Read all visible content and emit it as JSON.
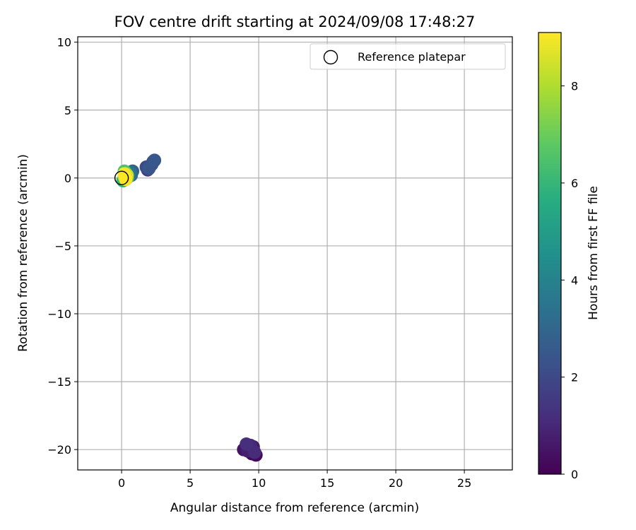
{
  "chart_data": {
    "type": "scatter",
    "title": "FOV centre drift starting at 2024/09/08 17:48:27",
    "xlabel": "Angular distance from reference (arcmin)",
    "ylabel": "Rotation from reference (arcmin)",
    "xlim": [
      -3.2,
      28.5
    ],
    "ylim": [
      -21.5,
      10.4
    ],
    "xticks": [
      0,
      5,
      10,
      15,
      20,
      25
    ],
    "yticks": [
      -20,
      -15,
      -10,
      -5,
      0,
      5,
      10
    ],
    "grid": true,
    "legend": {
      "placement": "top-right",
      "entries": [
        "Reference platepar"
      ]
    },
    "reference_point": {
      "x": 0,
      "y": 0
    },
    "colorbar": {
      "label": "Hours from first FF file",
      "colormap": "viridis",
      "range": [
        0,
        9.1
      ],
      "ticks": [
        0,
        2,
        4,
        6,
        8
      ]
    },
    "points": [
      {
        "x": 9.5,
        "y": -20.3,
        "h": 0.1
      },
      {
        "x": 9.8,
        "y": -20.4,
        "h": 0.2
      },
      {
        "x": 9.3,
        "y": -19.9,
        "h": 0.3
      },
      {
        "x": 8.9,
        "y": -20.0,
        "h": 0.5
      },
      {
        "x": 9.6,
        "y": -19.8,
        "h": 0.6
      },
      {
        "x": 9.2,
        "y": -20.1,
        "h": 0.8
      },
      {
        "x": 9.4,
        "y": -19.7,
        "h": 1.0
      },
      {
        "x": 9.7,
        "y": -20.2,
        "h": 1.1
      },
      {
        "x": 9.1,
        "y": -19.6,
        "h": 1.2
      },
      {
        "x": 1.9,
        "y": 0.6,
        "h": 1.5
      },
      {
        "x": 2.1,
        "y": 0.9,
        "h": 1.7
      },
      {
        "x": 2.3,
        "y": 1.2,
        "h": 1.9
      },
      {
        "x": 1.8,
        "y": 0.8,
        "h": 2.0
      },
      {
        "x": 2.2,
        "y": 1.0,
        "h": 2.2
      },
      {
        "x": 2.0,
        "y": 0.7,
        "h": 2.4
      },
      {
        "x": 2.4,
        "y": 1.3,
        "h": 2.5
      },
      {
        "x": 0.8,
        "y": 0.5,
        "h": 2.8
      },
      {
        "x": 0.7,
        "y": 0.2,
        "h": 3.1
      },
      {
        "x": 0.6,
        "y": 0.4,
        "h": 3.4
      },
      {
        "x": 0.5,
        "y": 0.1,
        "h": 3.8
      },
      {
        "x": 0.4,
        "y": 0.3,
        "h": 4.2
      },
      {
        "x": 0.3,
        "y": -0.1,
        "h": 4.6
      },
      {
        "x": 0.2,
        "y": 0.2,
        "h": 5.0
      },
      {
        "x": 0.3,
        "y": 0.4,
        "h": 5.5
      },
      {
        "x": 0.1,
        "y": -0.2,
        "h": 6.0
      },
      {
        "x": 0.2,
        "y": 0.5,
        "h": 6.5
      },
      {
        "x": 0.4,
        "y": 0.0,
        "h": 7.0
      },
      {
        "x": 0.3,
        "y": 0.3,
        "h": 7.5
      },
      {
        "x": 0.2,
        "y": 0.1,
        "h": 8.0
      },
      {
        "x": 0.4,
        "y": 0.2,
        "h": 8.4
      },
      {
        "x": 0.3,
        "y": 0.0,
        "h": 8.8
      },
      {
        "x": 0.2,
        "y": 0.3,
        "h": 9.0
      },
      {
        "x": 0.3,
        "y": -0.1,
        "h": 9.1
      }
    ]
  }
}
